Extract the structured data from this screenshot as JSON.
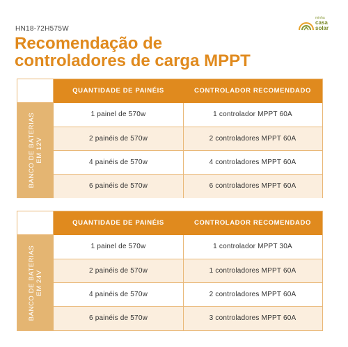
{
  "model_code": "HN18-72H575W",
  "title_line1": "Recomendação de",
  "title_line2": "controladores de carga MPPT",
  "logo": {
    "small": "minha",
    "line1": "casa",
    "line2": "solar",
    "icon": "sun-house-icon"
  },
  "colors": {
    "accent": "#e08a1e",
    "side_band": "#e4b572",
    "alt_row": "#fbeede",
    "border": "#e9b878"
  },
  "tables": [
    {
      "side_line1": "BANCO DE BATERIAS",
      "side_line2": "EM 12V",
      "headers": [
        "QUANTIDADE DE PAINÉIS",
        "CONTROLADOR RECOMENDADO"
      ],
      "rows": [
        [
          "1 painel de 570w",
          "1 controlador MPPT 60A"
        ],
        [
          "2 painéis de 570w",
          "2 controladores MPPT 60A"
        ],
        [
          "4 painéis de 570w",
          "4 controladores MPPT 60A"
        ],
        [
          "6 painéis de 570w",
          "6 controladores MPPT 60A"
        ]
      ]
    },
    {
      "side_line1": "BANCO DE BATERIAS",
      "side_line2": "EM 24V",
      "headers": [
        "QUANTIDADE DE PAINÉIS",
        "CONTROLADOR RECOMENDADO"
      ],
      "rows": [
        [
          "1 painel de 570w",
          "1 controlador MPPT 30A"
        ],
        [
          "2 painéis de 570w",
          "1 controladores MPPT 60A"
        ],
        [
          "4 painéis de 570w",
          "2 controladores MPPT 60A"
        ],
        [
          "6 painéis de 570w",
          "3 controladores MPPT 60A"
        ]
      ]
    }
  ]
}
